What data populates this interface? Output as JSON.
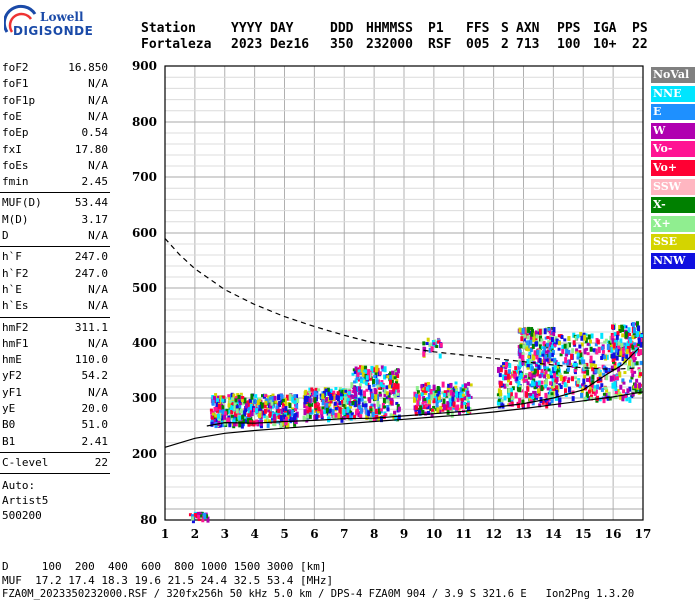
{
  "logo": {
    "line1": "Lowell",
    "line2": "DIGISONDE"
  },
  "header": {
    "labels": [
      "Station",
      "YYYY",
      "DAY",
      "DDD",
      "HHMMSS",
      "P1",
      "FFS",
      "S",
      "AXN",
      "PPS",
      "IGA",
      "PS"
    ],
    "values": [
      "Fortaleza",
      "2023",
      "Dez16",
      "350",
      "232000",
      "RSF",
      "005",
      "2",
      "713",
      "100",
      "10+",
      "22"
    ]
  },
  "params": {
    "group1": [
      {
        "k": "foF2",
        "v": "16.850"
      },
      {
        "k": "foF1",
        "v": "N/A"
      },
      {
        "k": "foF1p",
        "v": "N/A"
      },
      {
        "k": "foE",
        "v": "N/A"
      },
      {
        "k": "foEp",
        "v": "0.54"
      },
      {
        "k": "fxI",
        "v": "17.80"
      },
      {
        "k": "foEs",
        "v": "N/A"
      },
      {
        "k": "fmin",
        "v": "2.45"
      }
    ],
    "group2": [
      {
        "k": "MUF(D)",
        "v": "53.44"
      },
      {
        "k": "M(D)",
        "v": "3.17"
      },
      {
        "k": "D",
        "v": "N/A"
      }
    ],
    "group3": [
      {
        "k": "h`F",
        "v": "247.0"
      },
      {
        "k": "h`F2",
        "v": "247.0"
      },
      {
        "k": "h`E",
        "v": "N/A"
      },
      {
        "k": "h`Es",
        "v": "N/A"
      }
    ],
    "group4": [
      {
        "k": "hmF2",
        "v": "311.1"
      },
      {
        "k": "hmF1",
        "v": "N/A"
      },
      {
        "k": "hmE",
        "v": "110.0"
      },
      {
        "k": "yF2",
        "v": "54.2"
      },
      {
        "k": "yF1",
        "v": "N/A"
      },
      {
        "k": "yE",
        "v": "20.0"
      },
      {
        "k": "B0",
        "v": "51.0"
      },
      {
        "k": "B1",
        "v": "2.41"
      }
    ],
    "clevel": {
      "k": "C-level",
      "v": "22"
    },
    "auto": {
      "line1": "Auto:",
      "line2": "Artist5",
      "line3": "500200"
    }
  },
  "legend": [
    {
      "label": "NoVal",
      "color": "#808080"
    },
    {
      "label": "NNE",
      "color": "#00e5ff"
    },
    {
      "label": "E",
      "color": "#1e90ff"
    },
    {
      "label": "W",
      "color": "#b000b0"
    },
    {
      "label": "Vo-",
      "color": "#ff1493"
    },
    {
      "label": "Vo+",
      "color": "#ff0033"
    },
    {
      "label": "SSW",
      "color": "#ffb6c1"
    },
    {
      "label": "X-",
      "color": "#008000"
    },
    {
      "label": "X+",
      "color": "#90ee90"
    },
    {
      "label": "SSE",
      "color": "#d4d400"
    },
    {
      "label": "NNW",
      "color": "#1010e0"
    }
  ],
  "footer": {
    "line1": "D     100  200  400  600  800 1000 1500 3000 [km]",
    "line2": "MUF  17.2 17.4 18.3 19.6 21.5 24.4 32.5 53.4 [MHz]",
    "line3": "FZA0M_2023350232000.RSF / 320fx256h 50 kHz 5.0 km / DPS-4 FZA0M 904 / 3.9 S 321.6 E   Ion2Png 1.3.20"
  },
  "chart_data": {
    "type": "scatter",
    "title": "",
    "xlabel": "",
    "ylabel": "",
    "xlim": [
      1,
      17
    ],
    "ylim": [
      80,
      900
    ],
    "xticks": [
      1,
      2,
      3,
      4,
      5,
      6,
      7,
      8,
      9,
      10,
      11,
      12,
      13,
      14,
      15,
      16,
      17
    ],
    "yticks": [
      80,
      200,
      300,
      400,
      500,
      600,
      700,
      800,
      900
    ],
    "grid": true,
    "legend_position": "right",
    "series": [
      {
        "name": "MUF/dashed",
        "kind": "dashed-line",
        "x": [
          1.0,
          1.5,
          2.0,
          3.0,
          4.0,
          5.0,
          6.0,
          7.0,
          8.0,
          9.0,
          10.0,
          11.0,
          12.0,
          13.0,
          14.0,
          15.0,
          16.0,
          16.85
        ],
        "y": [
          590,
          560,
          535,
          497,
          470,
          448,
          430,
          414,
          400,
          392,
          384,
          378,
          372,
          366,
          360,
          355,
          352,
          355
        ]
      },
      {
        "name": "profile-lower",
        "kind": "solid-line",
        "x": [
          1.0,
          2.0,
          3.0,
          4.0,
          5.0,
          6.0,
          7.0,
          8.0,
          9.0,
          10.0,
          11.0,
          12.0,
          13.0,
          14.0,
          15.0,
          16.0,
          17.0
        ],
        "y": [
          212,
          228,
          237,
          242,
          246,
          250,
          254,
          258,
          262,
          266,
          270,
          275,
          281,
          288,
          295,
          302,
          311
        ]
      },
      {
        "name": "trace-upper",
        "kind": "solid-line",
        "x": [
          2.4,
          3.0,
          4.0,
          5.0,
          6.0,
          7.0,
          8.0,
          9.0,
          10.0,
          11.0,
          12.0,
          13.0,
          14.0,
          15.0,
          15.7,
          16.3,
          16.85
        ],
        "y": [
          250,
          256,
          255,
          258,
          260,
          263,
          264,
          268,
          272,
          276,
          283,
          290,
          300,
          315,
          340,
          360,
          390
        ]
      },
      {
        "name": "echoes",
        "kind": "scatter-clusters",
        "clusters": [
          {
            "x": [
              2.5,
              3.9
            ],
            "y": [
              255,
              310
            ],
            "density": 240
          },
          {
            "x": [
              3.9,
              5.4
            ],
            "y": [
              255,
              310
            ],
            "density": 220
          },
          {
            "x": [
              5.6,
              7.2
            ],
            "y": [
              265,
              320
            ],
            "density": 220
          },
          {
            "x": [
              7.2,
              8.8
            ],
            "y": [
              265,
              360
            ],
            "density": 260
          },
          {
            "x": [
              9.3,
              11.2
            ],
            "y": [
              275,
              330
            ],
            "density": 200
          },
          {
            "x": [
              12.1,
              14.2
            ],
            "y": [
              290,
              370
            ],
            "density": 260
          },
          {
            "x": [
              12.8,
              14.0
            ],
            "y": [
              370,
              430
            ],
            "density": 160
          },
          {
            "x": [
              14.0,
              16.9
            ],
            "y": [
              300,
              420
            ],
            "density": 360
          },
          {
            "x": [
              15.9,
              16.9
            ],
            "y": [
              380,
              440
            ],
            "density": 90
          },
          {
            "x": [
              1.8,
              2.4
            ],
            "y": [
              85,
              95
            ],
            "density": 30
          },
          {
            "x": [
              9.6,
              10.2
            ],
            "y": [
              380,
              410
            ],
            "density": 25
          }
        ]
      }
    ]
  }
}
